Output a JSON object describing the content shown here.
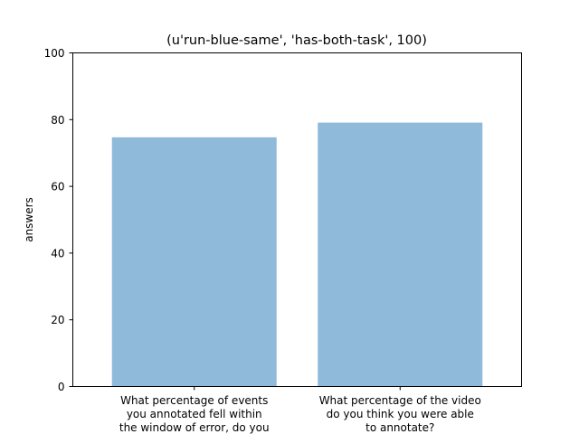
{
  "chart_data": {
    "type": "bar",
    "title": "(u'run-blue-same', 'has-both-task', 100)",
    "xlabel": "",
    "ylabel": "answers",
    "categories": [
      [
        "What percentage of events",
        "you annotated fell within",
        "the window of error, do you"
      ],
      [
        "What percentage of the video",
        "do you think you were able",
        "to annotate?"
      ]
    ],
    "values": [
      74.7,
      79.1
    ],
    "ylim": [
      0,
      100
    ],
    "yticks": [
      0,
      20,
      40,
      60,
      80,
      100
    ],
    "bar_color": "#8fbad9",
    "grid": false,
    "legend": "none"
  }
}
